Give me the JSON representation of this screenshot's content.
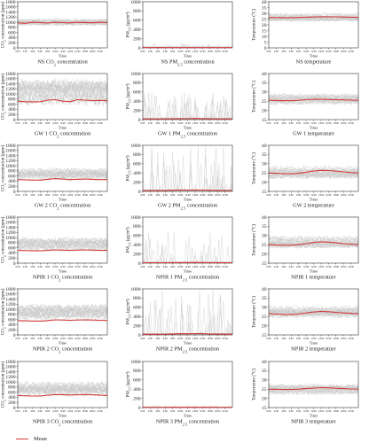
{
  "colors": {
    "mean": "#d23b3b",
    "samples": "#c8c8c8",
    "axis": "#333333"
  },
  "legend": {
    "label": "Mean"
  },
  "x_ticks": [
    "0:00",
    "2:00",
    "4:00",
    "6:00",
    "8:00",
    "10:00",
    "12:00",
    "14:00",
    "16:00",
    "18:00",
    "20:00",
    "22:00"
  ],
  "chart_data": [
    {
      "id": "ns-co2",
      "type": "line",
      "title": "NS CO$2 concentration",
      "xlabel": "Time",
      "ylabel": "CO$2 concentration (ppm)",
      "ylim": [
        0,
        1800
      ],
      "yticks": [
        0,
        200,
        400,
        600,
        800,
        1000,
        1200,
        1400,
        1600,
        1800
      ],
      "band": [
        820,
        1200
      ],
      "spike_scale": 0,
      "series": [
        {
          "name": "Mean",
          "values": [
            980,
            960,
            1000,
            990,
            970,
            1000,
            985,
            975,
            1000,
            990,
            980,
            1000,
            990
          ]
        }
      ]
    },
    {
      "id": "ns-pm",
      "type": "line",
      "title": "NS PM$2.5 concentration",
      "xlabel": "Time",
      "ylabel": "PM$2.5 (μg/m³)",
      "ylim": [
        0,
        1000
      ],
      "yticks": [
        0,
        200,
        400,
        600,
        800,
        1000
      ],
      "band": [
        0,
        25
      ],
      "spike_scale": 0.1,
      "series": [
        {
          "name": "Mean",
          "values": [
            5,
            6,
            8,
            6,
            5,
            5,
            6,
            5,
            5,
            6,
            5,
            5,
            5
          ]
        }
      ]
    },
    {
      "id": "ns-temp",
      "type": "line",
      "title": "NS temperature",
      "xlabel": "Time",
      "ylabel": "Temperature (°C)",
      "ylim": [
        0,
        40
      ],
      "yticks": [
        0,
        5,
        10,
        15,
        20,
        25,
        30,
        35,
        40
      ],
      "band": [
        22,
        31
      ],
      "spike_scale": 0,
      "series": [
        {
          "name": "Mean",
          "values": [
            26.5,
            26.3,
            26.2,
            26.2,
            26.4,
            26.6,
            26.8,
            27,
            27,
            26.9,
            26.8,
            26.6,
            26.5
          ]
        }
      ]
    },
    {
      "id": "gw1-co2",
      "type": "line",
      "title": "GW 1 CO$2 concentration",
      "xlabel": "Time",
      "ylabel": "CO$2 concentration (ppm)",
      "ylim": [
        0,
        1800
      ],
      "yticks": [
        0,
        200,
        400,
        600,
        800,
        1000,
        1200,
        1400,
        1600,
        1800
      ],
      "band": [
        400,
        1700
      ],
      "spike_scale": 0,
      "series": [
        {
          "name": "Mean",
          "values": [
            720,
            700,
            690,
            700,
            760,
            780,
            720,
            700,
            780,
            760,
            740,
            750,
            740
          ]
        }
      ]
    },
    {
      "id": "gw1-pm",
      "type": "line",
      "title": "GW 1 PM$2.5 concentration",
      "xlabel": "Time",
      "ylabel": "PM$2.5 (μg/m³)",
      "ylim": [
        0,
        1000
      ],
      "yticks": [
        0,
        200,
        400,
        600,
        800,
        1000
      ],
      "band": [
        0,
        40
      ],
      "spike_scale": 0.6,
      "series": [
        {
          "name": "Mean",
          "values": [
            15,
            14,
            14,
            16,
            20,
            22,
            20,
            25,
            22,
            18,
            16,
            15,
            15
          ]
        }
      ]
    },
    {
      "id": "gw1-temp",
      "type": "line",
      "title": "GW 1 temperature",
      "xlabel": "Time",
      "ylabel": "Temperature (°C)",
      "ylim": [
        15,
        40
      ],
      "yticks": [
        15,
        20,
        25,
        30,
        35,
        40
      ],
      "band": [
        22,
        30
      ],
      "spike_scale": 0,
      "series": [
        {
          "name": "Mean",
          "values": [
            25.5,
            25.4,
            25.3,
            25.3,
            25.5,
            25.8,
            26,
            26,
            25.9,
            25.8,
            25.7,
            25.6,
            25.5
          ]
        }
      ]
    },
    {
      "id": "gw2-co2",
      "type": "line",
      "title": "GW 2 CO$2 concentration",
      "xlabel": "Time",
      "ylabel": "CO$2 concentration (ppm)",
      "ylim": [
        0,
        1800
      ],
      "yticks": [
        0,
        200,
        400,
        600,
        800,
        1000,
        1200,
        1400,
        1600,
        1800
      ],
      "band": [
        350,
        1000
      ],
      "spike_scale": 0,
      "series": [
        {
          "name": "Mean",
          "values": [
            460,
            450,
            440,
            440,
            470,
            500,
            480,
            460,
            470,
            480,
            470,
            460,
            460
          ]
        }
      ]
    },
    {
      "id": "gw2-pm",
      "type": "line",
      "title": "GW 2 PM$2.5 concentration",
      "xlabel": "Time",
      "ylabel": "PM$2.5 (μg/m³)",
      "ylim": [
        0,
        1000
      ],
      "yticks": [
        0,
        200,
        400,
        600,
        800,
        1000
      ],
      "band": [
        0,
        40
      ],
      "spike_scale": 1.0,
      "series": [
        {
          "name": "Mean",
          "values": [
            20,
            18,
            18,
            20,
            25,
            30,
            28,
            30,
            28,
            24,
            22,
            20,
            20
          ]
        }
      ]
    },
    {
      "id": "gw2-temp",
      "type": "line",
      "title": "GW 2 temperature",
      "xlabel": "Time",
      "ylabel": "Temperature (°C)",
      "ylim": [
        15,
        40
      ],
      "yticks": [
        15,
        20,
        25,
        30,
        35,
        40
      ],
      "band": [
        21,
        30
      ],
      "spike_scale": 0,
      "series": [
        {
          "name": "Mean",
          "values": [
            25,
            24.8,
            24.6,
            24.5,
            24.8,
            25.4,
            26,
            26.4,
            26.3,
            26,
            25.6,
            25.2,
            25
          ]
        }
      ]
    },
    {
      "id": "npir1-co2",
      "type": "line",
      "title": "NPIR 1 CO$2 concentration",
      "xlabel": "Time",
      "ylabel": "CO$2 concentration (ppm)",
      "ylim": [
        0,
        1800
      ],
      "yticks": [
        0,
        200,
        400,
        600,
        800,
        1000,
        1200,
        1400,
        1600,
        1800
      ],
      "band": [
        380,
        1100
      ],
      "spike_scale": 0,
      "series": [
        {
          "name": "Mean",
          "values": [
            500,
            490,
            480,
            480,
            500,
            520,
            510,
            500,
            510,
            520,
            510,
            500,
            500
          ]
        }
      ]
    },
    {
      "id": "npir1-pm",
      "type": "line",
      "title": "NPIR 1 PM$2.5 concentration",
      "xlabel": "Time",
      "ylabel": "PM$2.5 (μg/m³)",
      "ylim": [
        0,
        1000
      ],
      "yticks": [
        0,
        200,
        400,
        600,
        800,
        1000
      ],
      "band": [
        0,
        30
      ],
      "spike_scale": 0.7,
      "series": [
        {
          "name": "Mean",
          "values": [
            10,
            10,
            9,
            10,
            12,
            14,
            13,
            15,
            14,
            12,
            11,
            10,
            10
          ]
        }
      ]
    },
    {
      "id": "npir1-temp",
      "type": "line",
      "title": "NPIR 1 temperature",
      "xlabel": "Time",
      "ylabel": "Temperature (°C)",
      "ylim": [
        15,
        40
      ],
      "yticks": [
        15,
        20,
        25,
        30,
        35,
        40
      ],
      "band": [
        22,
        31
      ],
      "spike_scale": 0,
      "series": [
        {
          "name": "Mean",
          "values": [
            25,
            24.8,
            24.7,
            24.7,
            25,
            25.6,
            26.2,
            26.6,
            26.4,
            26,
            25.6,
            25.3,
            25
          ]
        }
      ]
    },
    {
      "id": "npir2-co2",
      "type": "line",
      "title": "NPIR 2 CO$2 concentration",
      "xlabel": "Time",
      "ylabel": "CO$2 concentration (ppm)",
      "ylim": [
        0,
        1800
      ],
      "yticks": [
        0,
        200,
        400,
        600,
        800,
        1000,
        1200,
        1400,
        1600,
        1800
      ],
      "band": [
        400,
        1300
      ],
      "spike_scale": 0,
      "series": [
        {
          "name": "Mean",
          "values": [
            560,
            550,
            540,
            540,
            560,
            590,
            580,
            570,
            580,
            590,
            580,
            570,
            560
          ]
        }
      ]
    },
    {
      "id": "npir2-pm",
      "type": "line",
      "title": "NPIR 2 PM$2.5 concentration",
      "xlabel": "Time",
      "ylabel": "PM$2.5 (μg/m³)",
      "ylim": [
        0,
        1000
      ],
      "yticks": [
        0,
        200,
        400,
        600,
        800,
        1000
      ],
      "band": [
        0,
        40
      ],
      "spike_scale": 1.0,
      "series": [
        {
          "name": "Mean",
          "values": [
            15,
            14,
            14,
            16,
            22,
            26,
            24,
            28,
            26,
            20,
            18,
            16,
            15
          ]
        }
      ]
    },
    {
      "id": "npir2-temp",
      "type": "line",
      "title": "NPIR 2 temperature",
      "xlabel": "Time",
      "ylabel": "Temperature (°C)",
      "ylim": [
        15,
        40
      ],
      "yticks": [
        15,
        20,
        25,
        30,
        35,
        40
      ],
      "band": [
        23,
        32
      ],
      "spike_scale": 0,
      "series": [
        {
          "name": "Mean",
          "values": [
            26.5,
            26.3,
            26.1,
            26,
            26.3,
            26.9,
            27.4,
            27.8,
            27.6,
            27.2,
            26.9,
            26.7,
            26.5
          ]
        }
      ]
    },
    {
      "id": "npir3-co2",
      "type": "line",
      "title": "NPIR 3 CO$2 concentration",
      "xlabel": "Time",
      "ylabel": "CO$2 concentration (ppm)",
      "ylim": [
        0,
        1800
      ],
      "yticks": [
        0,
        200,
        400,
        600,
        800,
        1000,
        1200,
        1400,
        1600,
        1800
      ],
      "band": [
        350,
        1100
      ],
      "spike_scale": 0,
      "series": [
        {
          "name": "Mean",
          "values": [
            470,
            460,
            450,
            450,
            480,
            510,
            500,
            490,
            500,
            510,
            500,
            480,
            470
          ]
        }
      ]
    },
    {
      "id": "npir3-pm",
      "type": "line",
      "title": "NPIR 3 PM$2.5 concentration",
      "xlabel": "Time",
      "ylabel": "PM$2.5 (μg/m³)",
      "ylim": [
        0,
        1000
      ],
      "yticks": [
        0,
        200,
        400,
        600,
        800,
        1000
      ],
      "band": [
        0,
        20
      ],
      "spike_scale": 0.05,
      "series": [
        {
          "name": "Mean",
          "values": [
            4,
            4,
            4,
            4,
            5,
            6,
            5,
            6,
            5,
            5,
            4,
            4,
            4
          ]
        }
      ]
    },
    {
      "id": "npir3-temp",
      "type": "line",
      "title": "NPIR 3 temperature",
      "xlabel": "Time",
      "ylabel": "Temperature (°C)",
      "ylim": [
        15,
        40
      ],
      "yticks": [
        15,
        20,
        25,
        30,
        35,
        40
      ],
      "band": [
        21,
        29
      ],
      "spike_scale": 0,
      "series": [
        {
          "name": "Mean",
          "values": [
            25,
            24.9,
            24.8,
            24.8,
            25,
            25.3,
            25.6,
            25.8,
            25.7,
            25.5,
            25.3,
            25.1,
            25
          ]
        }
      ]
    }
  ]
}
